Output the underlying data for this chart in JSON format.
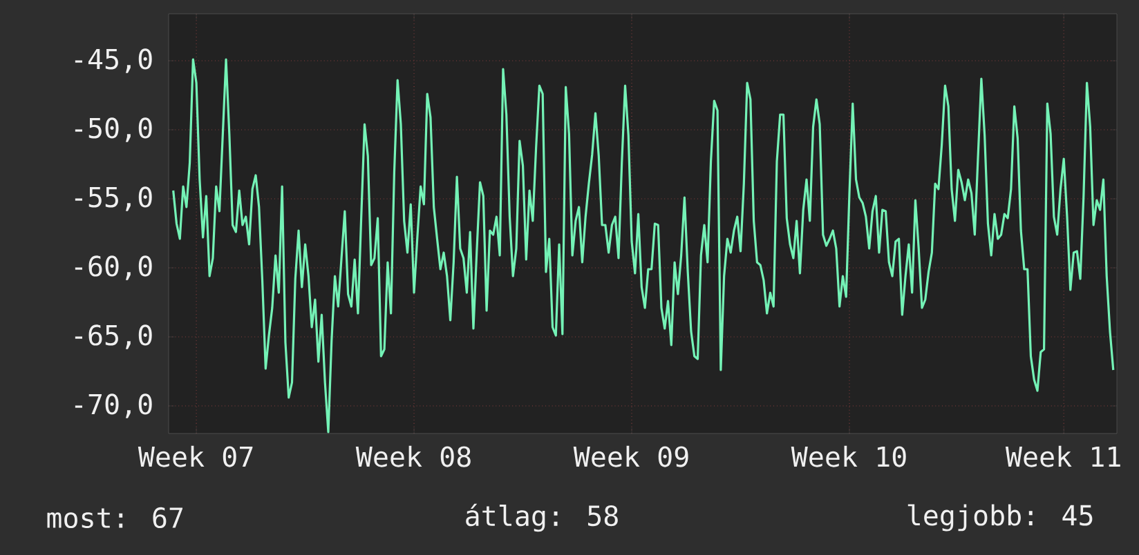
{
  "chart_data": {
    "type": "line",
    "color": "#74f2b6",
    "grid": true,
    "ylim": [
      -72,
      -41.6
    ],
    "categories": [
      null,
      null,
      null,
      null,
      null,
      null,
      null,
      "Week 07",
      null,
      null,
      null,
      null,
      null,
      null,
      null,
      null,
      null,
      null,
      null,
      null,
      null,
      null,
      null,
      null,
      null,
      null,
      null,
      null,
      null,
      null,
      null,
      null,
      null,
      null,
      null,
      null,
      null,
      null,
      null,
      null,
      null,
      null,
      null,
      null,
      null,
      null,
      null,
      null,
      null,
      null,
      null,
      null,
      null,
      null,
      null,
      null,
      null,
      null,
      null,
      null,
      null,
      null,
      null,
      null,
      null,
      null,
      null,
      null,
      null,
      null,
      null,
      null,
      null,
      "Week 08",
      null,
      null,
      null,
      null,
      null,
      null,
      null,
      null,
      null,
      null,
      null,
      null,
      null,
      null,
      null,
      null,
      null,
      null,
      null,
      null,
      null,
      null,
      null,
      null,
      null,
      null,
      null,
      null,
      null,
      null,
      null,
      null,
      null,
      null,
      null,
      null,
      null,
      null,
      null,
      null,
      null,
      null,
      null,
      null,
      null,
      null,
      null,
      null,
      null,
      null,
      null,
      null,
      null,
      null,
      null,
      null,
      null,
      null,
      null,
      null,
      null,
      null,
      null,
      null,
      null,
      "Week 09",
      null,
      null,
      null,
      null,
      null,
      null,
      null,
      null,
      null,
      null,
      null,
      null,
      null,
      null,
      null,
      null,
      null,
      null,
      null,
      null,
      null,
      null,
      null,
      null,
      null,
      null,
      null,
      null,
      null,
      null,
      null,
      null,
      null,
      null,
      null,
      null,
      null,
      null,
      null,
      null,
      null,
      null,
      null,
      null,
      null,
      null,
      null,
      null,
      null,
      null,
      null,
      null,
      null,
      null,
      null,
      null,
      null,
      null,
      null,
      null,
      null,
      null,
      null,
      null,
      null,
      "Week 10",
      null,
      null,
      null,
      null,
      null,
      null,
      null,
      null,
      null,
      null,
      null,
      null,
      null,
      null,
      null,
      null,
      null,
      null,
      null,
      null,
      null,
      null,
      null,
      null,
      null,
      null,
      null,
      null,
      null,
      null,
      null,
      null,
      null,
      null,
      null,
      null,
      null,
      null,
      null,
      null,
      null,
      null,
      null,
      null,
      null,
      null,
      null,
      null,
      null,
      null,
      null,
      null,
      null,
      null,
      null,
      null,
      null,
      null,
      null,
      null,
      null,
      null,
      null,
      null,
      "Week 11",
      null,
      null,
      null,
      null,
      null,
      null,
      null,
      null,
      null,
      null,
      null,
      null,
      null,
      null,
      null
    ],
    "yticks": [
      {
        "value": -70,
        "label": "-70,0"
      },
      {
        "value": -65,
        "label": "-65,0"
      },
      {
        "value": -60,
        "label": "-60,0"
      },
      {
        "value": -55,
        "label": "-55,0"
      },
      {
        "value": -50,
        "label": "-50,0"
      },
      {
        "value": -45,
        "label": "-45,0"
      }
    ],
    "annotations": [
      "most: 67",
      "átlag: 58",
      "legjobb: 45"
    ],
    "values": [
      -54.4,
      -56.8,
      -57.9,
      -54.1,
      -55.6,
      -52.4,
      -44.9,
      -46.6,
      -53.6,
      -57.8,
      -54.8,
      -60.6,
      -59.3,
      -54.1,
      -55.9,
      -50.4,
      -44.9,
      -50.3,
      -56.9,
      -57.4,
      -54.4,
      -56.9,
      -56.3,
      -58.3,
      -54.3,
      -53.3,
      -55.6,
      -60.9,
      -67.3,
      -64.9,
      -62.9,
      -59.1,
      -61.8,
      -54.1,
      -65.4,
      -69.4,
      -68.3,
      -60.8,
      -57.3,
      -61.4,
      -58.3,
      -60.6,
      -64.3,
      -62.3,
      -66.8,
      -63.4,
      -68.3,
      -71.9,
      -65.3,
      -60.6,
      -62.8,
      -59.3,
      -55.9,
      -61.9,
      -62.8,
      -59.4,
      -63.3,
      -56.3,
      -49.6,
      -51.9,
      -59.8,
      -59.3,
      -56.4,
      -66.4,
      -65.9,
      -59.6,
      -63.3,
      -53.1,
      -46.4,
      -49.6,
      -56.6,
      -58.9,
      -55.4,
      -61.8,
      -57.8,
      -54.1,
      -55.4,
      -47.4,
      -49.1,
      -55.6,
      -57.9,
      -60.1,
      -58.9,
      -60.6,
      -63.8,
      -59.6,
      -53.4,
      -58.6,
      -59.3,
      -61.8,
      -57.4,
      -64.4,
      -58.9,
      -53.8,
      -54.8,
      -63.1,
      -57.3,
      -57.6,
      -56.3,
      -59.1,
      -45.6,
      -48.9,
      -56.3,
      -60.6,
      -58.6,
      -50.8,
      -52.6,
      -59.4,
      -54.4,
      -56.6,
      -51.3,
      -46.8,
      -47.4,
      -60.3,
      -57.9,
      -64.3,
      -64.9,
      -58.3,
      -64.8,
      -46.9,
      -50.3,
      -59.1,
      -56.6,
      -55.6,
      -59.6,
      -56.3,
      -53.9,
      -51.8,
      -48.8,
      -51.9,
      -56.9,
      -56.9,
      -58.9,
      -56.9,
      -56.3,
      -59.3,
      -52.4,
      -46.8,
      -50.4,
      -58.1,
      -60.4,
      -56.1,
      -61.4,
      -62.9,
      -60.1,
      -60.1,
      -56.8,
      -56.9,
      -62.9,
      -64.4,
      -62.4,
      -65.6,
      -59.6,
      -61.9,
      -59.1,
      -54.9,
      -60.3,
      -64.6,
      -66.4,
      -66.6,
      -59.1,
      -56.9,
      -59.6,
      -52.3,
      -47.9,
      -48.6,
      -67.4,
      -60.6,
      -57.9,
      -58.9,
      -57.3,
      -56.3,
      -58.8,
      -53.9,
      -46.6,
      -47.8,
      -56.6,
      -59.6,
      -59.8,
      -60.9,
      -63.3,
      -61.8,
      -62.8,
      -52.3,
      -48.9,
      -48.9,
      -56.4,
      -58.3,
      -59.3,
      -56.6,
      -60.4,
      -55.8,
      -53.6,
      -56.6,
      -49.8,
      -47.8,
      -49.6,
      -57.6,
      -58.4,
      -57.9,
      -57.3,
      -58.6,
      -62.8,
      -60.6,
      -62.1,
      -54.6,
      -48.1,
      -53.6,
      -54.9,
      -55.3,
      -56.3,
      -58.6,
      -55.9,
      -54.8,
      -58.9,
      -55.8,
      -55.9,
      -59.6,
      -60.6,
      -58.1,
      -57.9,
      -63.4,
      -60.6,
      -58.3,
      -61.8,
      -55.1,
      -58.6,
      -62.9,
      -62.3,
      -60.3,
      -58.9,
      -53.9,
      -54.3,
      -51.1,
      -46.8,
      -48.3,
      -54.3,
      -56.6,
      -52.9,
      -53.8,
      -55.1,
      -53.6,
      -54.6,
      -57.6,
      -51.9,
      -46.3,
      -50.4,
      -56.8,
      -59.1,
      -56.1,
      -57.9,
      -57.6,
      -56.1,
      -56.4,
      -54.3,
      -48.3,
      -50.6,
      -57.3,
      -60.1,
      -60.1,
      -66.4,
      -68.1,
      -68.9,
      -66.1,
      -65.9,
      -48.1,
      -50.3,
      -56.3,
      -57.6,
      -54.3,
      -52.1,
      -56.3,
      -61.6,
      -58.9,
      -58.8,
      -60.8,
      -54.8,
      -46.6,
      -49.8,
      -56.9,
      -55.1,
      -55.8,
      -53.6,
      -60.6,
      -64.6,
      -67.4
    ]
  }
}
